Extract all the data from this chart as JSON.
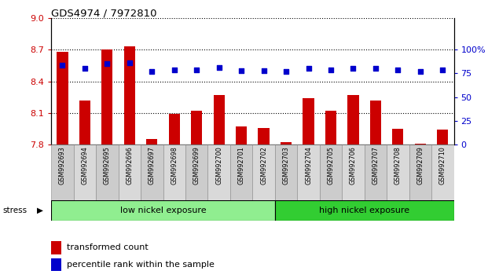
{
  "title": "GDS4974 / 7972810",
  "samples": [
    "GSM992693",
    "GSM992694",
    "GSM992695",
    "GSM992696",
    "GSM992697",
    "GSM992698",
    "GSM992699",
    "GSM992700",
    "GSM992701",
    "GSM992702",
    "GSM992703",
    "GSM992704",
    "GSM992705",
    "GSM992706",
    "GSM992707",
    "GSM992708",
    "GSM992709",
    "GSM992710"
  ],
  "bar_values": [
    8.68,
    8.22,
    8.7,
    8.73,
    7.85,
    8.09,
    8.12,
    8.27,
    7.97,
    7.96,
    7.82,
    8.24,
    8.12,
    8.27,
    8.22,
    7.95,
    7.81,
    7.94
  ],
  "percentile_values": [
    84,
    80,
    85,
    86,
    77,
    79,
    79,
    81,
    78,
    78,
    77,
    80,
    79,
    80,
    80,
    79,
    77,
    79
  ],
  "ylim_min": 7.8,
  "ylim_max": 9.0,
  "yticks": [
    7.8,
    8.1,
    8.4,
    8.7,
    9.0
  ],
  "y2lim_min": 0,
  "y2lim_max": 133.33,
  "y2ticks": [
    0,
    25,
    50,
    75,
    100
  ],
  "bar_color": "#cc0000",
  "dot_color": "#0000cc",
  "low_nickel_count": 10,
  "high_nickel_count": 8,
  "low_nickel_label": "low nickel exposure",
  "high_nickel_label": "high nickel exposure",
  "stress_label": "stress",
  "legend_bar_label": "transformed count",
  "legend_dot_label": "percentile rank within the sample",
  "bg_color": "#ffffff",
  "tick_color_left": "#cc0000",
  "tick_color_right": "#0000cc",
  "low_group_color": "#90ee90",
  "high_group_color": "#32cd32",
  "xtick_bg_even": "#cccccc",
  "xtick_bg_odd": "#d9d9d9"
}
